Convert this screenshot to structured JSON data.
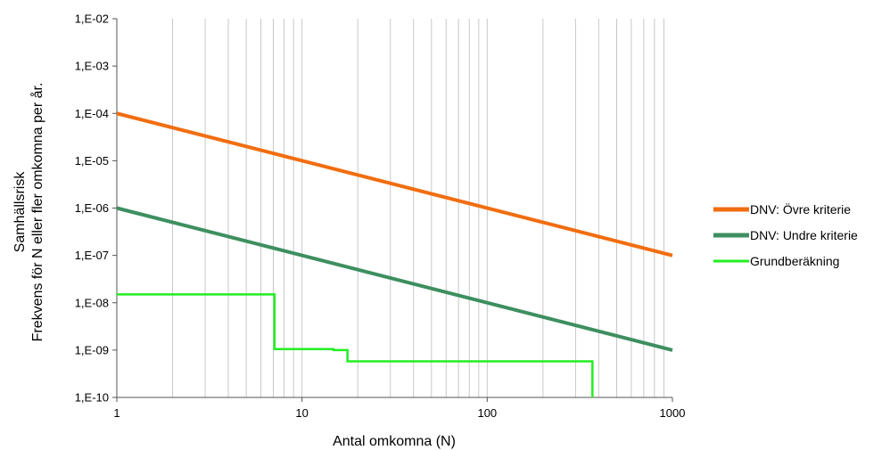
{
  "chart_data": {
    "type": "line",
    "title": "",
    "xlabel": "Antal omkomna (N)",
    "ylabel_lines": [
      "Samhällsrisk",
      "Frekvens för N eller fler omkomna per år."
    ],
    "x_scale": "log",
    "y_scale": "log",
    "xlim": [
      1,
      1000
    ],
    "ylim": [
      1e-10,
      0.01
    ],
    "x_ticks": [
      1,
      10,
      100,
      1000
    ],
    "x_tick_labels": [
      "1",
      "10",
      "100",
      "1000"
    ],
    "y_ticks": [
      0.01,
      0.001,
      0.0001,
      1e-05,
      1e-06,
      1e-07,
      1e-08,
      1e-09,
      1e-10
    ],
    "y_tick_labels": [
      "1,E-02",
      "1,E-03",
      "1,E-04",
      "1,E-05",
      "1,E-06",
      "1,E-07",
      "1,E-08",
      "1,E-09",
      "1,E-10"
    ],
    "grid": "vertical minor and major lines on x",
    "legend_position": "right",
    "series": [
      {
        "name": "DNV: Övre kriterie",
        "color": "#f26d10",
        "width": 4,
        "x": [
          1,
          1000
        ],
        "y": [
          0.0001,
          1e-07
        ]
      },
      {
        "name": "DNV: Undre kriterie",
        "color": "#3d8f5f",
        "width": 4,
        "x": [
          1,
          1000
        ],
        "y": [
          1e-06,
          1e-09
        ]
      },
      {
        "name": "Grundberäkning",
        "color": "#22ee22",
        "width": 2.5,
        "step": true,
        "x": [
          1,
          7.1,
          7.1,
          14.8,
          14.8,
          17.6,
          17.6,
          370,
          370
        ],
        "y": [
          1.5e-08,
          1.5e-08,
          1.05e-09,
          1.05e-09,
          1e-09,
          1e-09,
          5.8e-10,
          5.8e-10,
          1e-10
        ]
      }
    ]
  }
}
